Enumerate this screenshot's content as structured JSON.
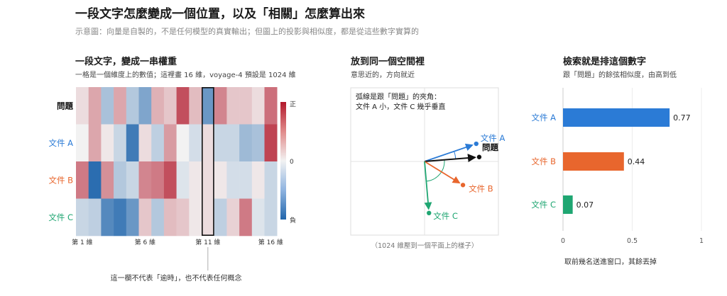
{
  "page": {
    "title": "一段文字怎麼變成一個位置，以及「相關」怎麼算出來",
    "subtitle": "示意圖：向量是自製的，不是任何模型的真實輸出；但圖上的投影與相似度，都是從這些數字實算的"
  },
  "colors": {
    "query": "#111111",
    "doc_a": "#2b7bd6",
    "doc_b": "#e8662d",
    "doc_c": "#1fa672",
    "heat_pos": "#b2182b",
    "heat_neg": "#2166ac",
    "heat_mid": "#f2f2f2"
  },
  "chart_data": [
    {
      "type": "heatmap",
      "title": "一段文字，變成一串權重",
      "subtitle": "一格是一個維度上的數值；這裡畫 16 維，voyage-4 預設是 1024 維",
      "rows": [
        "問題",
        "文件 A",
        "文件 B",
        "文件 C"
      ],
      "x_ticks": [
        {
          "index": 1,
          "label": "第 1 維"
        },
        {
          "index": 6,
          "label": "第 6 維"
        },
        {
          "index": 11,
          "label": "第 11 維"
        },
        {
          "index": 16,
          "label": "第 16 維"
        }
      ],
      "values": [
        [
          0.1,
          0.35,
          -0.35,
          0.35,
          -0.3,
          -0.55,
          0.3,
          0.2,
          0.75,
          0.25,
          -0.65,
          0.5,
          0.2,
          0.2,
          0.1,
          0.6
        ],
        [
          0.0,
          0.35,
          0.05,
          -0.2,
          -0.85,
          0.1,
          -0.25,
          0.4,
          0.0,
          -0.15,
          0.1,
          -0.2,
          -0.2,
          -0.4,
          -0.35,
          0.8
        ],
        [
          0.55,
          -0.95,
          0.45,
          -0.3,
          -0.2,
          0.5,
          0.55,
          0.75,
          -0.1,
          0.05,
          0.1,
          0.05,
          -0.15,
          -0.15,
          0.05,
          -0.2
        ],
        [
          -0.2,
          -0.25,
          -0.75,
          -0.85,
          -0.65,
          0.2,
          -0.3,
          0.25,
          0.2,
          0.05,
          0.1,
          -0.25,
          0.15,
          0.55,
          -0.1,
          -0.2
        ]
      ],
      "highlight_col": 11,
      "colorbar": {
        "pos_label": "正",
        "mid_label": "0",
        "neg_label": "負"
      },
      "annotation": "這一欄不代表「逾時」，也不代表任何概念"
    },
    {
      "type": "scatter",
      "title": "放到同一個空間裡",
      "subtitle": "意思近的，方向就近",
      "note_line1": "弧線是跟「問題」的夾角：",
      "note_line2": "文件 A 小，文件 C 幾乎垂直",
      "caption": "（1024 維壓到一個平面上的樣子）",
      "points": [
        {
          "name": "文件 A",
          "x": 0.7,
          "y": 0.24
        },
        {
          "name": "問題",
          "x": 0.74,
          "y": 0.06
        },
        {
          "name": "文件 B",
          "x": 0.52,
          "y": -0.32
        },
        {
          "name": "文件 C",
          "x": 0.06,
          "y": -0.7
        }
      ]
    },
    {
      "type": "bar",
      "orientation": "horizontal",
      "title": "檢索就是排這個數字",
      "subtitle": "跟「問題」的餘弦相似度，由高到低",
      "categories": [
        "文件 A",
        "文件 B",
        "文件 C"
      ],
      "values": [
        0.77,
        0.44,
        0.07
      ],
      "value_labels": [
        "0.77",
        "0.44",
        "0.07"
      ],
      "x_ticks": [
        "0",
        "0.5",
        "1"
      ],
      "xlim": [
        0,
        1
      ],
      "footnote": "取前幾名送進窗口，其餘丟掉"
    }
  ]
}
